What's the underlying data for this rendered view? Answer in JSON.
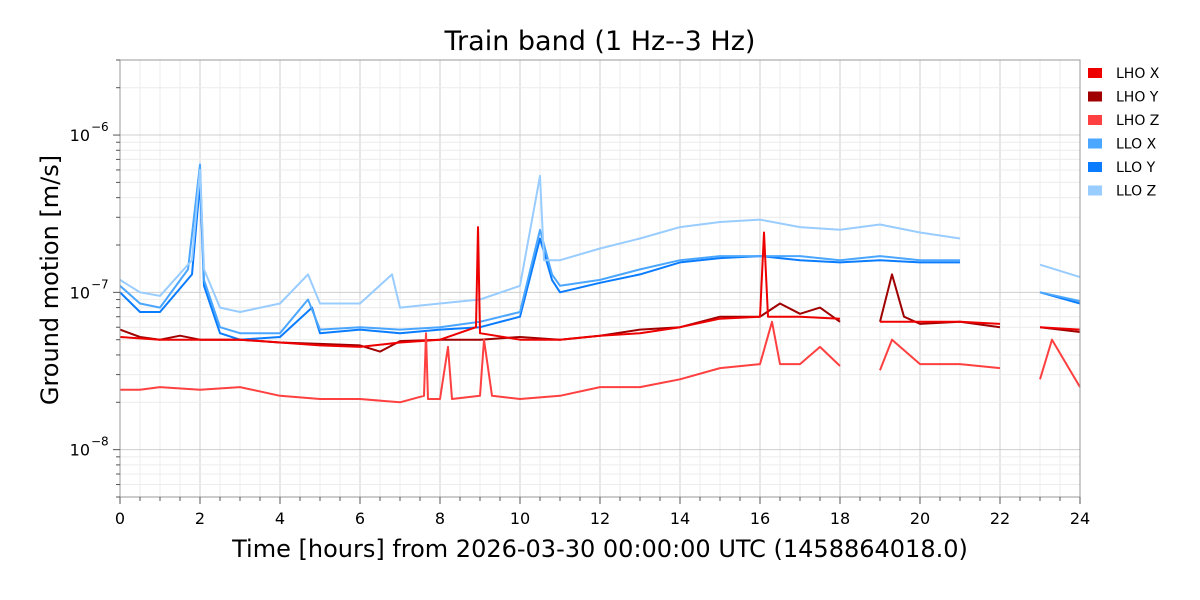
{
  "chart_data": {
    "type": "line",
    "title": "Train band (1 Hz--3 Hz)",
    "xlabel": "Time [hours] from 2026-03-30 00:00:00 UTC (1458864018.0)",
    "ylabel": "Ground motion [m/s]",
    "xlim": [
      0,
      24
    ],
    "ylim": [
      5e-09,
      3e-06
    ],
    "yscale": "log",
    "grid": true,
    "legend_position": "outside-right-top",
    "xticks": [
      0,
      2,
      4,
      6,
      8,
      10,
      12,
      14,
      16,
      18,
      20,
      22,
      24
    ],
    "xtick_labels": [
      "0",
      "2",
      "4",
      "6",
      "8",
      "10",
      "12",
      "14",
      "16",
      "18",
      "20",
      "22",
      "24"
    ],
    "yticks": [
      1e-08,
      1e-07,
      1e-06
    ],
    "ytick_labels": [
      {
        "base": "10",
        "exp": "−8"
      },
      {
        "base": "10",
        "exp": "−7"
      },
      {
        "base": "10",
        "exp": "−6"
      }
    ],
    "series": [
      {
        "name": "LHO X",
        "color": "#ee0000",
        "points": [
          [
            0,
            5.2e-08
          ],
          [
            1,
            5e-08
          ],
          [
            2,
            5e-08
          ],
          [
            3,
            5e-08
          ],
          [
            4,
            4.8e-08
          ],
          [
            5,
            4.6e-08
          ],
          [
            6,
            4.5e-08
          ],
          [
            7,
            4.8e-08
          ],
          [
            8,
            5e-08
          ],
          [
            8.9,
            6e-08
          ],
          [
            8.95,
            2.6e-07
          ],
          [
            9.0,
            5.5e-08
          ],
          [
            10,
            5e-08
          ],
          [
            11,
            5e-08
          ],
          [
            12,
            5.3e-08
          ],
          [
            13,
            5.5e-08
          ],
          [
            14,
            6e-08
          ],
          [
            15,
            6.8e-08
          ],
          [
            16,
            7e-08
          ],
          [
            16.1,
            2.4e-07
          ],
          [
            16.2,
            7e-08
          ],
          [
            17,
            7e-08
          ],
          [
            18,
            6.8e-08
          ],
          [
            null,
            null
          ],
          [
            19,
            6.5e-08
          ],
          [
            20,
            6.5e-08
          ],
          [
            21,
            6.5e-08
          ],
          [
            22,
            6.3e-08
          ],
          [
            null,
            null
          ],
          [
            23,
            6e-08
          ],
          [
            24,
            5.8e-08
          ]
        ]
      },
      {
        "name": "LHO Y",
        "color": "#a00000",
        "points": [
          [
            0,
            5.8e-08
          ],
          [
            0.5,
            5.2e-08
          ],
          [
            1,
            5e-08
          ],
          [
            1.5,
            5.3e-08
          ],
          [
            2,
            5e-08
          ],
          [
            3,
            5e-08
          ],
          [
            4,
            4.8e-08
          ],
          [
            5,
            4.7e-08
          ],
          [
            6,
            4.6e-08
          ],
          [
            6.5,
            4.2e-08
          ],
          [
            7,
            4.9e-08
          ],
          [
            8,
            5e-08
          ],
          [
            9,
            5e-08
          ],
          [
            10,
            5.2e-08
          ],
          [
            11,
            5e-08
          ],
          [
            12,
            5.3e-08
          ],
          [
            13,
            5.8e-08
          ],
          [
            14,
            6e-08
          ],
          [
            15,
            7e-08
          ],
          [
            16,
            7e-08
          ],
          [
            16.5,
            8.5e-08
          ],
          [
            17,
            7.3e-08
          ],
          [
            17.5,
            8e-08
          ],
          [
            18,
            6.5e-08
          ],
          [
            null,
            null
          ],
          [
            19,
            6.5e-08
          ],
          [
            19.3,
            1.3e-07
          ],
          [
            19.6,
            7e-08
          ],
          [
            20,
            6.3e-08
          ],
          [
            21,
            6.5e-08
          ],
          [
            22,
            6e-08
          ],
          [
            null,
            null
          ],
          [
            23,
            6e-08
          ],
          [
            24,
            5.6e-08
          ]
        ]
      },
      {
        "name": "LHO Z",
        "color": "#ff4040",
        "points": [
          [
            0,
            2.4e-08
          ],
          [
            0.5,
            2.4e-08
          ],
          [
            1,
            2.5e-08
          ],
          [
            2,
            2.4e-08
          ],
          [
            3,
            2.5e-08
          ],
          [
            4,
            2.2e-08
          ],
          [
            5,
            2.1e-08
          ],
          [
            6,
            2.1e-08
          ],
          [
            7,
            2e-08
          ],
          [
            7.6,
            2.2e-08
          ],
          [
            7.65,
            5.5e-08
          ],
          [
            7.7,
            2.1e-08
          ],
          [
            8,
            2.1e-08
          ],
          [
            8.2,
            4.5e-08
          ],
          [
            8.3,
            2.1e-08
          ],
          [
            9,
            2.2e-08
          ],
          [
            9.1,
            5e-08
          ],
          [
            9.3,
            2.2e-08
          ],
          [
            10,
            2.1e-08
          ],
          [
            11,
            2.2e-08
          ],
          [
            12,
            2.5e-08
          ],
          [
            13,
            2.5e-08
          ],
          [
            14,
            2.8e-08
          ],
          [
            15,
            3.3e-08
          ],
          [
            16,
            3.5e-08
          ],
          [
            16.3,
            6.5e-08
          ],
          [
            16.5,
            3.5e-08
          ],
          [
            17,
            3.5e-08
          ],
          [
            17.5,
            4.5e-08
          ],
          [
            18,
            3.4e-08
          ],
          [
            null,
            null
          ],
          [
            19,
            3.2e-08
          ],
          [
            19.3,
            5e-08
          ],
          [
            20,
            3.5e-08
          ],
          [
            21,
            3.5e-08
          ],
          [
            22,
            3.3e-08
          ],
          [
            null,
            null
          ],
          [
            23,
            2.8e-08
          ],
          [
            23.3,
            5e-08
          ],
          [
            24,
            2.5e-08
          ]
        ]
      },
      {
        "name": "LLO X",
        "color": "#4ba6ff",
        "points": [
          [
            0,
            1.1e-07
          ],
          [
            0.5,
            8.5e-08
          ],
          [
            1,
            8e-08
          ],
          [
            1.7,
            1.4e-07
          ],
          [
            2,
            6.5e-07
          ],
          [
            2.1,
            1.2e-07
          ],
          [
            2.5,
            6e-08
          ],
          [
            3,
            5.5e-08
          ],
          [
            4,
            5.5e-08
          ],
          [
            4.7,
            9e-08
          ],
          [
            5,
            5.8e-08
          ],
          [
            6,
            6e-08
          ],
          [
            7,
            5.8e-08
          ],
          [
            8,
            6e-08
          ],
          [
            9,
            6.5e-08
          ],
          [
            10,
            7.5e-08
          ],
          [
            10.5,
            2.5e-07
          ],
          [
            10.8,
            1.3e-07
          ],
          [
            11,
            1.1e-07
          ],
          [
            12,
            1.2e-07
          ],
          [
            13,
            1.4e-07
          ],
          [
            14,
            1.6e-07
          ],
          [
            15,
            1.7e-07
          ],
          [
            16,
            1.7e-07
          ],
          [
            17,
            1.7e-07
          ],
          [
            18,
            1.6e-07
          ],
          [
            19,
            1.7e-07
          ],
          [
            20,
            1.6e-07
          ],
          [
            21,
            1.6e-07
          ],
          [
            null,
            null
          ],
          [
            23,
            1e-07
          ],
          [
            24,
            8.8e-08
          ]
        ]
      },
      {
        "name": "LLO Y",
        "color": "#0a7cff",
        "points": [
          [
            0,
            1e-07
          ],
          [
            0.5,
            7.5e-08
          ],
          [
            1,
            7.5e-08
          ],
          [
            1.8,
            1.3e-07
          ],
          [
            2,
            5e-07
          ],
          [
            2.1,
            1.1e-07
          ],
          [
            2.5,
            5.5e-08
          ],
          [
            3,
            5e-08
          ],
          [
            4,
            5.2e-08
          ],
          [
            4.8,
            8e-08
          ],
          [
            5,
            5.5e-08
          ],
          [
            6,
            5.8e-08
          ],
          [
            7,
            5.5e-08
          ],
          [
            8,
            5.8e-08
          ],
          [
            9,
            6e-08
          ],
          [
            10,
            7e-08
          ],
          [
            10.5,
            2.2e-07
          ],
          [
            10.8,
            1.2e-07
          ],
          [
            11,
            1e-07
          ],
          [
            12,
            1.15e-07
          ],
          [
            13,
            1.3e-07
          ],
          [
            14,
            1.55e-07
          ],
          [
            15,
            1.65e-07
          ],
          [
            16,
            1.7e-07
          ],
          [
            17,
            1.6e-07
          ],
          [
            18,
            1.55e-07
          ],
          [
            19,
            1.6e-07
          ],
          [
            20,
            1.55e-07
          ],
          [
            21,
            1.55e-07
          ],
          [
            null,
            null
          ],
          [
            23,
            1e-07
          ],
          [
            24,
            8.5e-08
          ]
        ]
      },
      {
        "name": "LLO Z",
        "color": "#99ccff",
        "points": [
          [
            0,
            1.2e-07
          ],
          [
            0.5,
            1e-07
          ],
          [
            1,
            9.5e-08
          ],
          [
            1.8,
            1.6e-07
          ],
          [
            2,
            6e-07
          ],
          [
            2.1,
            1.4e-07
          ],
          [
            2.5,
            8e-08
          ],
          [
            3,
            7.5e-08
          ],
          [
            4,
            8.5e-08
          ],
          [
            4.7,
            1.3e-07
          ],
          [
            5,
            8.5e-08
          ],
          [
            6,
            8.5e-08
          ],
          [
            6.8,
            1.3e-07
          ],
          [
            7,
            8e-08
          ],
          [
            8,
            8.5e-08
          ],
          [
            9,
            9e-08
          ],
          [
            10,
            1.1e-07
          ],
          [
            10.5,
            5.5e-07
          ],
          [
            10.6,
            1.6e-07
          ],
          [
            11,
            1.6e-07
          ],
          [
            12,
            1.9e-07
          ],
          [
            13,
            2.2e-07
          ],
          [
            14,
            2.6e-07
          ],
          [
            15,
            2.8e-07
          ],
          [
            16,
            2.9e-07
          ],
          [
            17,
            2.6e-07
          ],
          [
            18,
            2.5e-07
          ],
          [
            19,
            2.7e-07
          ],
          [
            20,
            2.4e-07
          ],
          [
            21,
            2.2e-07
          ],
          [
            null,
            null
          ],
          [
            23,
            1.5e-07
          ],
          [
            24,
            1.25e-07
          ]
        ]
      }
    ]
  }
}
